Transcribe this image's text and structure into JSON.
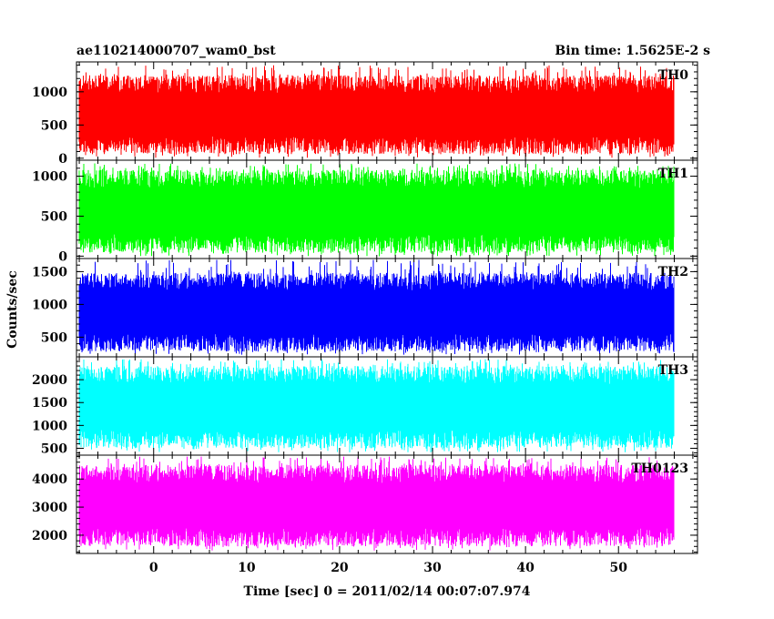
{
  "chart_data": {
    "type": "line",
    "title": "ae110214000707_wam0_bst",
    "subtitle": "Bin time: 1.5625E-2 s",
    "xlabel": "Time [sec] 0 = 2011/02/14 00:07:07.974",
    "ylabel": "Counts/sec",
    "xlim": [
      -8.3,
      58.5
    ],
    "xticks": [
      0,
      10,
      20,
      30,
      40,
      50
    ],
    "x_data_range": [
      -8.0,
      56.0
    ],
    "grid": false,
    "panels": [
      {
        "name": "TH0",
        "color": "#ff0000",
        "ylim": [
          -30,
          1450
        ],
        "yticks": [
          0,
          500,
          1000
        ],
        "typical_min": 60,
        "typical_max": 1250,
        "peak_max": 1400
      },
      {
        "name": "TH1",
        "color": "#00ff00",
        "ylim": [
          -30,
          1200
        ],
        "yticks": [
          0,
          500,
          1000
        ],
        "typical_min": 40,
        "typical_max": 1080,
        "peak_max": 1160
      },
      {
        "name": "TH2",
        "color": "#0000ff",
        "ylim": [
          200,
          1700
        ],
        "yticks": [
          500,
          1000,
          1500
        ],
        "typical_min": 280,
        "typical_max": 1480,
        "peak_max": 1680
      },
      {
        "name": "TH3",
        "color": "#00ffff",
        "ylim": [
          350,
          2500
        ],
        "yticks": [
          500,
          1000,
          1500,
          2000
        ],
        "typical_min": 500,
        "typical_max": 2300,
        "peak_max": 2450
      },
      {
        "name": "TH0123",
        "color": "#ff00ff",
        "ylim": [
          1350,
          4850
        ],
        "yticks": [
          2000,
          3000,
          4000
        ],
        "typical_min": 1600,
        "typical_max": 4500,
        "peak_max": 4800
      }
    ]
  }
}
